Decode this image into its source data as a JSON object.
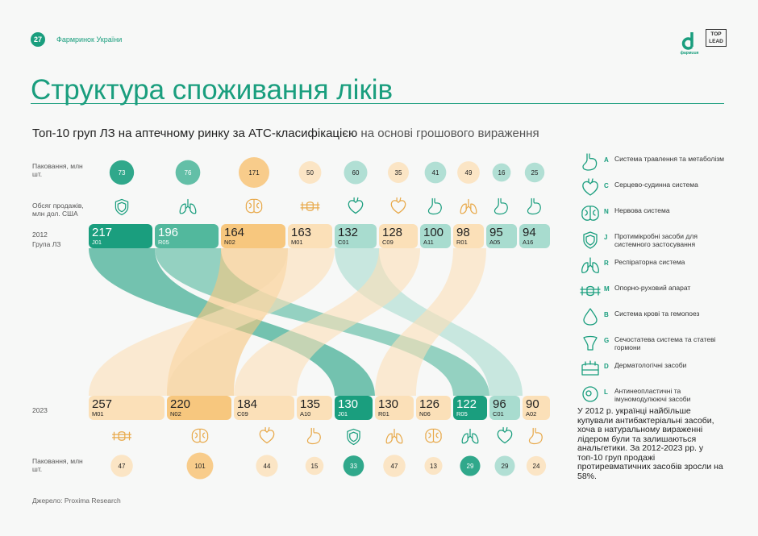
{
  "header": {
    "page_number": "27",
    "section": "Фармринок України",
    "brand": "фармuuя",
    "partner": "TOP LEAD"
  },
  "title": "Структура споживання ліків",
  "subtitle": {
    "bold": "Топ-10 груп ЛЗ на аптечному ринку за АТС-класифікацією",
    "rest": " на основі грошового вираження"
  },
  "row_labels": {
    "packs_2012": "Паковання, млн шт.",
    "sales": "Обсяг продажів, млн дол. США",
    "year_2012": "2012",
    "group": "Група ЛЗ",
    "year_2023": "2023",
    "packs_2023": "Паковання, млн шт."
  },
  "colors": {
    "green_dark": "#1a9e7e",
    "green_mid": "#52b89d",
    "green_light": "#a8dccf",
    "orange": "#f7c77e",
    "orange_light": "#fbe0b8"
  },
  "legend": [
    {
      "code": "A",
      "text": "Система травлення та метаболізм",
      "icon": "stomach-icon"
    },
    {
      "code": "C",
      "text": "Серцево-судинна система",
      "icon": "heart-icon"
    },
    {
      "code": "N",
      "text": "Нервова система",
      "icon": "brain-icon"
    },
    {
      "code": "J",
      "text": "Протимікробні засоби для системного застосування",
      "icon": "shield-icon"
    },
    {
      "code": "R",
      "text": "Респіраторна система",
      "icon": "lungs-icon"
    },
    {
      "code": "M",
      "text": "Опорно-руховий апарат",
      "icon": "bone-icon"
    },
    {
      "code": "B",
      "text": "Система крові та гемопоез",
      "icon": "drop-icon"
    },
    {
      "code": "G",
      "text": "Сечостатева система та статеві гормони",
      "icon": "uterus-icon"
    },
    {
      "code": "D",
      "text": "Дерматологічні засоби",
      "icon": "skin-icon"
    },
    {
      "code": "L",
      "text": "Антинеопластичні та імуномодулюючі засоби",
      "icon": "cell-icon"
    }
  ],
  "note": "У 2012 р. українці найбільше купували антибактеріальні засоби, хоча в натуральному вираженні лідером були та залишаються анальгетики. За 2012-2023 рр. у топ-10 груп продажі протиревматичних засобів зросли на 58%.",
  "source": "Джерело: Proxima Research",
  "chart_data": {
    "type": "bump",
    "title": "Топ-10 груп ЛЗ на аптечному ринку за АТС-класифікацією на основі грошового вираження",
    "series_2012": [
      {
        "code": "J01",
        "sales": 217,
        "packs": 73,
        "icon": "shield-icon",
        "color": "green_dark"
      },
      {
        "code": "R05",
        "sales": 196,
        "packs": 76,
        "icon": "lungs-icon",
        "color": "green_mid"
      },
      {
        "code": "N02",
        "sales": 164,
        "packs": 171,
        "icon": "brain-icon",
        "color": "orange"
      },
      {
        "code": "M01",
        "sales": 163,
        "packs": 50,
        "icon": "bone-icon",
        "color": "orange_light"
      },
      {
        "code": "C01",
        "sales": 132,
        "packs": 60,
        "icon": "heart-icon",
        "color": "green_light"
      },
      {
        "code": "C09",
        "sales": 128,
        "packs": 35,
        "icon": "heart-icon",
        "color": "orange_light"
      },
      {
        "code": "A11",
        "sales": 100,
        "packs": 41,
        "icon": "stomach-icon",
        "color": "green_light"
      },
      {
        "code": "R01",
        "sales": 98,
        "packs": 49,
        "icon": "lungs-icon",
        "color": "orange_light"
      },
      {
        "code": "A05",
        "sales": 95,
        "packs": 16,
        "icon": "stomach-icon",
        "color": "green_light"
      },
      {
        "code": "A16",
        "sales": 94,
        "packs": 25,
        "icon": "stomach-icon",
        "color": "green_light"
      }
    ],
    "series_2023": [
      {
        "code": "M01",
        "sales": 257,
        "packs": 47,
        "icon": "bone-icon",
        "color": "orange_light"
      },
      {
        "code": "N02",
        "sales": 220,
        "packs": 101,
        "icon": "brain-icon",
        "color": "orange"
      },
      {
        "code": "C09",
        "sales": 184,
        "packs": 44,
        "icon": "heart-icon",
        "color": "orange_light"
      },
      {
        "code": "A10",
        "sales": 135,
        "packs": 15,
        "icon": "stomach-icon",
        "color": "orange_light"
      },
      {
        "code": "J01",
        "sales": 130,
        "packs": 33,
        "icon": "shield-icon",
        "color": "green_dark"
      },
      {
        "code": "R01",
        "sales": 130,
        "packs": 47,
        "icon": "lungs-icon",
        "color": "orange_light"
      },
      {
        "code": "N06",
        "sales": 126,
        "packs": 13,
        "icon": "brain-icon",
        "color": "orange_light"
      },
      {
        "code": "R05",
        "sales": 122,
        "packs": 29,
        "icon": "lungs-icon",
        "color": "green_dark"
      },
      {
        "code": "C01",
        "sales": 96,
        "packs": 29,
        "icon": "heart-icon",
        "color": "green_light"
      },
      {
        "code": "A02",
        "sales": 90,
        "packs": 24,
        "icon": "stomach-icon",
        "color": "orange_light"
      }
    ],
    "flows": [
      [
        "J01",
        "J01"
      ],
      [
        "R05",
        "R05"
      ],
      [
        "N02",
        "N02"
      ],
      [
        "M01",
        "M01"
      ],
      [
        "C01",
        "C01"
      ],
      [
        "C09",
        "C09"
      ],
      [
        "R01",
        "R01"
      ]
    ]
  }
}
